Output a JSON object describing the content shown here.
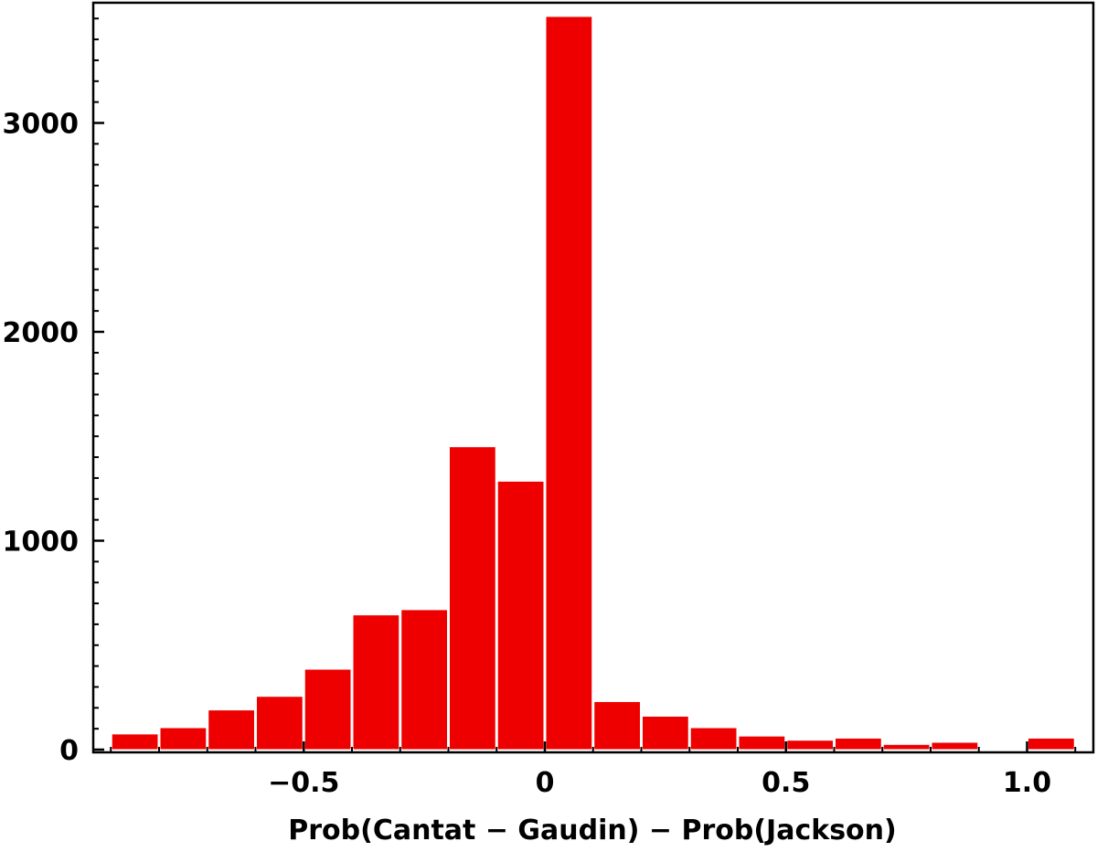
{
  "chart_data": {
    "type": "bar",
    "title": "",
    "xlabel": "Prob(Cantat − Gaudin) − Prob(Jackson)",
    "ylabel": "",
    "xlim": [
      -0.9,
      1.1
    ],
    "ylim": [
      0,
      3550
    ],
    "grid": false,
    "bar_color": "#ee0000",
    "x_ticks": [
      {
        "value": -0.5,
        "label": "−0.5"
      },
      {
        "value": 0,
        "label": "0"
      },
      {
        "value": 0.5,
        "label": "0.5"
      },
      {
        "value": 1.0,
        "label": "1.0"
      }
    ],
    "y_ticks": [
      {
        "value": 0,
        "label": "0"
      },
      {
        "value": 1000,
        "label": "1000"
      },
      {
        "value": 2000,
        "label": "2000"
      },
      {
        "value": 3000,
        "label": "3000"
      }
    ],
    "bin_width": 0.1,
    "bins": [
      {
        "x0": -0.9,
        "value": 75
      },
      {
        "x0": -0.8,
        "value": 105
      },
      {
        "x0": -0.7,
        "value": 190
      },
      {
        "x0": -0.6,
        "value": 255
      },
      {
        "x0": -0.5,
        "value": 385
      },
      {
        "x0": -0.4,
        "value": 645
      },
      {
        "x0": -0.3,
        "value": 670
      },
      {
        "x0": -0.2,
        "value": 1450
      },
      {
        "x0": -0.1,
        "value": 1285
      },
      {
        "x0": 0.0,
        "value": 3510
      },
      {
        "x0": 0.1,
        "value": 230
      },
      {
        "x0": 0.2,
        "value": 160
      },
      {
        "x0": 0.3,
        "value": 105
      },
      {
        "x0": 0.4,
        "value": 65
      },
      {
        "x0": 0.5,
        "value": 45
      },
      {
        "x0": 0.6,
        "value": 55
      },
      {
        "x0": 0.7,
        "value": 25
      },
      {
        "x0": 0.8,
        "value": 35
      },
      {
        "x0": 0.9,
        "value": 0
      },
      {
        "x0": 1.0,
        "value": 55
      }
    ]
  }
}
